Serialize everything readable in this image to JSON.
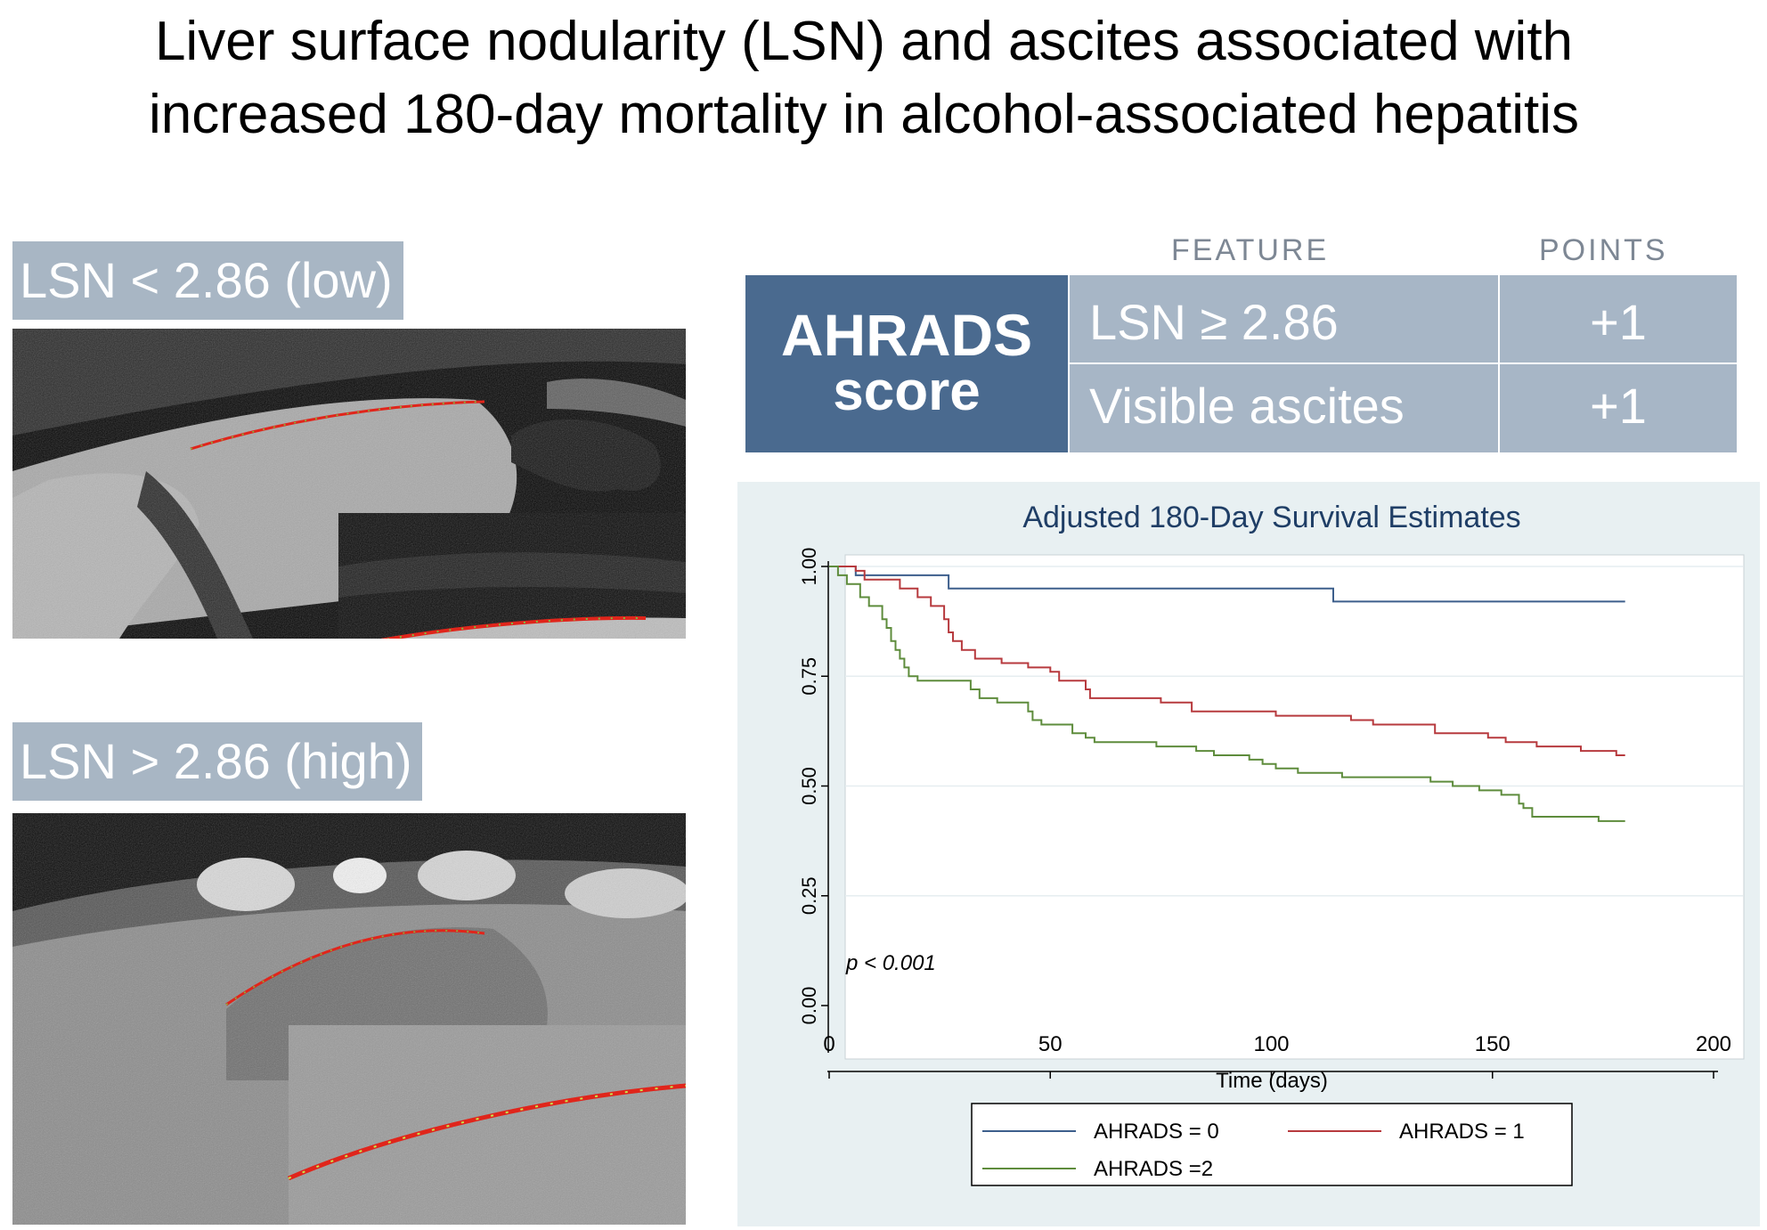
{
  "title": {
    "line1": "Liver surface nodularity (LSN) and ascites associated with",
    "line2": "increased 180-day mortality in alcohol-associated hepatitis"
  },
  "panels": {
    "low_label": "LSN < 2.86 (low)",
    "high_label": "LSN > 2.86 (high)"
  },
  "table": {
    "feature_header": "FEATURE",
    "points_header": "POINTS",
    "score_line1": "AHRADS",
    "score_line2": "score",
    "rows": [
      {
        "feature": "LSN ≥ 2.86",
        "points": "+1"
      },
      {
        "feature": "Visible ascites",
        "points": "+1"
      }
    ]
  },
  "colors": {
    "label_bg": "#a8b6c4",
    "score_bg": "#4a6a8f",
    "cell_bg": "#a7b6c6",
    "chart_bg": "#e8f0f2",
    "series0": "#3d5f8c",
    "series1": "#b73a3e",
    "series2": "#5e8c3c"
  },
  "chart_data": {
    "type": "line",
    "title": "Adjusted 180-Day Survival Estimates",
    "xlabel": "Time (days)",
    "ylabel": "",
    "xlim": [
      0,
      200
    ],
    "ylim": [
      0,
      1
    ],
    "xticks": [
      "0",
      "50",
      "100",
      "150",
      "200"
    ],
    "yticks": [
      "0.00",
      "0.25",
      "0.50",
      "0.75",
      "1.00"
    ],
    "annotation": "p < 0.001",
    "legend": [
      "AHRADS = 0",
      "AHRADS = 1",
      "AHRADS =2"
    ],
    "series": [
      {
        "name": "AHRADS = 0",
        "points": [
          [
            0,
            1
          ],
          [
            6,
            1
          ],
          [
            6,
            0.98
          ],
          [
            27,
            0.98
          ],
          [
            27,
            0.95
          ],
          [
            114,
            0.95
          ],
          [
            114,
            0.92
          ],
          [
            180,
            0.92
          ]
        ]
      },
      {
        "name": "AHRADS = 1",
        "points": [
          [
            0,
            1
          ],
          [
            6,
            1
          ],
          [
            6,
            0.99
          ],
          [
            8,
            0.99
          ],
          [
            8,
            0.97
          ],
          [
            16,
            0.97
          ],
          [
            16,
            0.95
          ],
          [
            20,
            0.95
          ],
          [
            20,
            0.93
          ],
          [
            23,
            0.93
          ],
          [
            23,
            0.91
          ],
          [
            26,
            0.91
          ],
          [
            26,
            0.88
          ],
          [
            27,
            0.88
          ],
          [
            27,
            0.85
          ],
          [
            28,
            0.85
          ],
          [
            28,
            0.83
          ],
          [
            30,
            0.83
          ],
          [
            30,
            0.81
          ],
          [
            33,
            0.81
          ],
          [
            33,
            0.79
          ],
          [
            39,
            0.79
          ],
          [
            39,
            0.78
          ],
          [
            45,
            0.78
          ],
          [
            45,
            0.77
          ],
          [
            50,
            0.77
          ],
          [
            50,
            0.76
          ],
          [
            52,
            0.76
          ],
          [
            52,
            0.74
          ],
          [
            58,
            0.74
          ],
          [
            58,
            0.72
          ],
          [
            59,
            0.72
          ],
          [
            59,
            0.7
          ],
          [
            75,
            0.7
          ],
          [
            75,
            0.69
          ],
          [
            82,
            0.69
          ],
          [
            82,
            0.67
          ],
          [
            101,
            0.67
          ],
          [
            101,
            0.66
          ],
          [
            118,
            0.66
          ],
          [
            118,
            0.65
          ],
          [
            123,
            0.65
          ],
          [
            123,
            0.64
          ],
          [
            137,
            0.64
          ],
          [
            137,
            0.62
          ],
          [
            149,
            0.62
          ],
          [
            149,
            0.61
          ],
          [
            153,
            0.61
          ],
          [
            153,
            0.6
          ],
          [
            160,
            0.6
          ],
          [
            160,
            0.59
          ],
          [
            170,
            0.59
          ],
          [
            170,
            0.58
          ],
          [
            178,
            0.58
          ],
          [
            178,
            0.57
          ],
          [
            180,
            0.57
          ]
        ]
      },
      {
        "name": "AHRADS =2",
        "points": [
          [
            0,
            1
          ],
          [
            2,
            1
          ],
          [
            2,
            0.98
          ],
          [
            4,
            0.98
          ],
          [
            4,
            0.96
          ],
          [
            7,
            0.96
          ],
          [
            7,
            0.93
          ],
          [
            9,
            0.93
          ],
          [
            9,
            0.91
          ],
          [
            12,
            0.91
          ],
          [
            12,
            0.88
          ],
          [
            13,
            0.88
          ],
          [
            13,
            0.86
          ],
          [
            14,
            0.86
          ],
          [
            14,
            0.83
          ],
          [
            15,
            0.83
          ],
          [
            15,
            0.81
          ],
          [
            16,
            0.81
          ],
          [
            16,
            0.79
          ],
          [
            17,
            0.79
          ],
          [
            17,
            0.77
          ],
          [
            18,
            0.77
          ],
          [
            18,
            0.75
          ],
          [
            20,
            0.75
          ],
          [
            20,
            0.74
          ],
          [
            32,
            0.74
          ],
          [
            32,
            0.72
          ],
          [
            34,
            0.72
          ],
          [
            34,
            0.7
          ],
          [
            38,
            0.7
          ],
          [
            38,
            0.69
          ],
          [
            45,
            0.69
          ],
          [
            45,
            0.67
          ],
          [
            46,
            0.67
          ],
          [
            46,
            0.65
          ],
          [
            48,
            0.65
          ],
          [
            48,
            0.64
          ],
          [
            55,
            0.64
          ],
          [
            55,
            0.62
          ],
          [
            58,
            0.62
          ],
          [
            58,
            0.61
          ],
          [
            60,
            0.61
          ],
          [
            60,
            0.6
          ],
          [
            74,
            0.6
          ],
          [
            74,
            0.59
          ],
          [
            83,
            0.59
          ],
          [
            83,
            0.58
          ],
          [
            87,
            0.58
          ],
          [
            87,
            0.57
          ],
          [
            95,
            0.57
          ],
          [
            95,
            0.56
          ],
          [
            98,
            0.56
          ],
          [
            98,
            0.55
          ],
          [
            101,
            0.55
          ],
          [
            101,
            0.54
          ],
          [
            106,
            0.54
          ],
          [
            106,
            0.53
          ],
          [
            116,
            0.53
          ],
          [
            116,
            0.52
          ],
          [
            136,
            0.52
          ],
          [
            136,
            0.51
          ],
          [
            141,
            0.51
          ],
          [
            141,
            0.5
          ],
          [
            147,
            0.5
          ],
          [
            147,
            0.49
          ],
          [
            152,
            0.49
          ],
          [
            152,
            0.48
          ],
          [
            156,
            0.48
          ],
          [
            156,
            0.46
          ],
          [
            157,
            0.46
          ],
          [
            157,
            0.45
          ],
          [
            159,
            0.45
          ],
          [
            159,
            0.43
          ],
          [
            174,
            0.43
          ],
          [
            174,
            0.42
          ],
          [
            180,
            0.42
          ]
        ]
      }
    ]
  }
}
